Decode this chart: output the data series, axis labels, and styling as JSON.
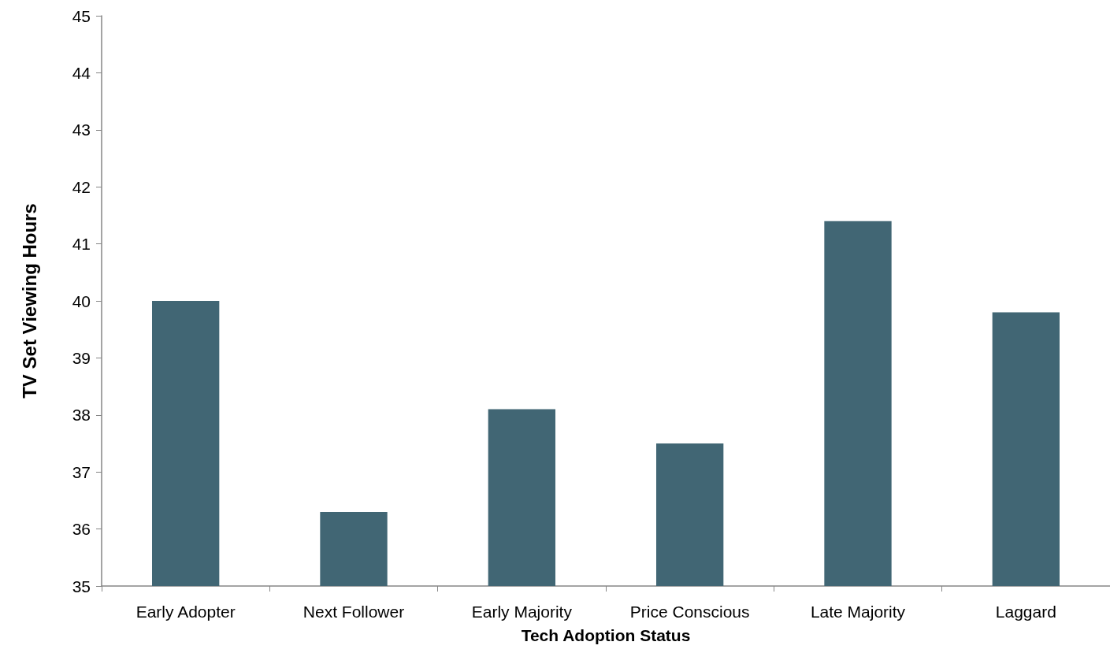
{
  "chart_data": {
    "type": "bar",
    "xlabel": "Tech Adoption Status",
    "ylabel": "TV Set Viewing Hours",
    "categories": [
      "Early Adopter",
      "Next Follower",
      "Early Majority",
      "Price Conscious",
      "Late Majority",
      "Laggard"
    ],
    "values": [
      40.0,
      36.3,
      38.1,
      37.5,
      41.4,
      39.8
    ],
    "color": "#416674",
    "ylim": [
      35,
      45
    ],
    "yticks": [
      35,
      36,
      37,
      38,
      39,
      40,
      41,
      42,
      43,
      44,
      45
    ],
    "grid": false
  }
}
